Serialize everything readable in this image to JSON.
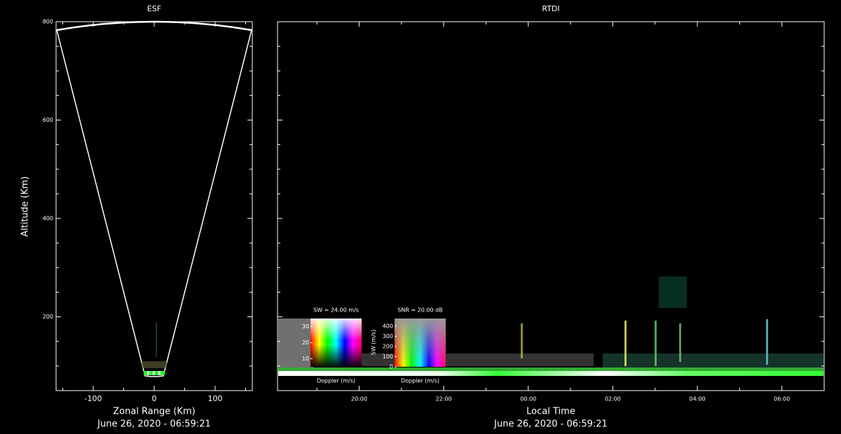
{
  "chart_data": [
    {
      "type": "sector",
      "title": "ESF",
      "xlabel": "Zonal Range (Km)",
      "ylabel": "Altitude (Km)",
      "xlim": [
        -161,
        161
      ],
      "xticks": [
        -100,
        0,
        100
      ],
      "ylim": [
        50,
        800
      ],
      "yticks": [
        200,
        400,
        600,
        800
      ],
      "footer": "June 26, 2020 - 06:59:21"
    },
    {
      "type": "rtdi",
      "title": "RTDI",
      "xlabel": "Local Time",
      "xlim": [
        18.07,
        31.0
      ],
      "xticks": [
        {
          "value": 20,
          "label": "20:00"
        },
        {
          "value": 22,
          "label": "22:00"
        },
        {
          "value": 24,
          "label": "00:00"
        },
        {
          "value": 26,
          "label": "02:00"
        },
        {
          "value": 28,
          "label": "04:00"
        },
        {
          "value": 30,
          "label": "06:00"
        }
      ],
      "footer": "June 26, 2020 - 06:59:21",
      "legends": [
        {
          "title": "SW = 24.00 m/s",
          "xlabel": "Doppler (m/s)",
          "ylim": [
            5,
            35
          ],
          "yticks": [
            10,
            20,
            30
          ]
        },
        {
          "title": "SNR = 20.00 dB",
          "xlabel": "Doppler (m/s)",
          "ylabel": "SW (m/s)",
          "ylim": [
            0,
            475
          ],
          "yticks": [
            0,
            100,
            200,
            300,
            400
          ]
        }
      ]
    }
  ]
}
